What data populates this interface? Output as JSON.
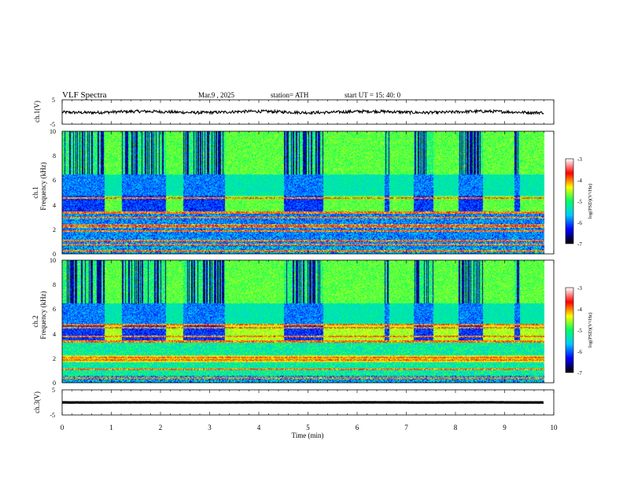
{
  "header": {
    "title": "VLF  Spectra",
    "date": "Mar.9  , 2025",
    "station": "station= ATH",
    "start": "start  UT  =   15: 40: 0"
  },
  "chart_data": [
    {
      "name": "ch1-waveform",
      "type": "line",
      "ylabel": "ch.1(V)",
      "ylim": [
        -5,
        5
      ],
      "yticks": [
        "5",
        "-5"
      ],
      "xlim": [
        0,
        10
      ],
      "baseline": 0,
      "amplitude": 1.0
    },
    {
      "name": "ch1-spectrogram",
      "type": "heatmap",
      "ylabel1": "ch.1",
      "ylabel2": "Frequency  (kHz)",
      "ylim": [
        0,
        10
      ],
      "yticks": [
        "0",
        "2",
        "4",
        "6",
        "8",
        "10"
      ],
      "xlim": [
        0,
        10.0
      ],
      "data_end_min": 9.8,
      "colorbar": {
        "label": "log(PSD)(V²/Hz)",
        "ticks": [
          "-3",
          "-4",
          "-5",
          "-6",
          "-7"
        ],
        "range": [
          -7,
          -3
        ]
      },
      "lines_khz": [
        0.3,
        0.8,
        1.1,
        1.9,
        2.2,
        2.4,
        3.0,
        3.4,
        4.6
      ],
      "band_4khz_intervals_min": [
        [
          0.85,
          1.2
        ],
        [
          2.1,
          2.45
        ],
        [
          3.3,
          4.5
        ],
        [
          5.3,
          6.55
        ],
        [
          6.65,
          7.15
        ],
        [
          7.55,
          8.05
        ],
        [
          8.55,
          9.2
        ],
        [
          9.3,
          9.8
        ]
      ]
    },
    {
      "name": "ch2-spectrogram",
      "type": "heatmap",
      "ylabel1": "ch.2",
      "ylabel2": "Frequency  (kHz)",
      "ylim": [
        0,
        10
      ],
      "yticks": [
        "0",
        "2",
        "4",
        "6",
        "8",
        "10"
      ],
      "xlim": [
        0,
        10.0
      ],
      "data_end_min": 9.8,
      "colorbar": {
        "label": "log(PSD)(V²/Hz)",
        "ticks": [
          "-3",
          "-4",
          "-5",
          "-6",
          "-7"
        ],
        "range": [
          -7,
          -3
        ]
      },
      "lines_khz": [
        0.4,
        1.1,
        1.9,
        2.1,
        3.4,
        3.8,
        4.5,
        4.8
      ],
      "band_4khz_intervals_min": [
        [
          0.85,
          1.2
        ],
        [
          2.1,
          2.45
        ],
        [
          3.3,
          4.5
        ],
        [
          5.3,
          6.55
        ],
        [
          6.65,
          7.15
        ],
        [
          7.55,
          8.05
        ],
        [
          8.55,
          9.2
        ],
        [
          9.3,
          9.8
        ]
      ]
    },
    {
      "name": "ch3-waveform",
      "type": "line",
      "ylabel": "ch.3(V)",
      "ylim": [
        -5,
        5
      ],
      "yticks": [
        "5",
        "-5"
      ],
      "xlim": [
        0,
        10
      ],
      "baseline": 0,
      "amplitude": 0.1
    }
  ],
  "xaxis": {
    "label": "Time  (min)",
    "ticks": [
      "0",
      "1",
      "2",
      "3",
      "4",
      "5",
      "6",
      "7",
      "8",
      "9",
      "10"
    ],
    "range": [
      0,
      10
    ]
  },
  "colors": {
    "colormap": [
      "#000000",
      "#0000ff",
      "#00c8ff",
      "#00ff64",
      "#ffff00",
      "#ff0000",
      "#ffffff"
    ]
  }
}
